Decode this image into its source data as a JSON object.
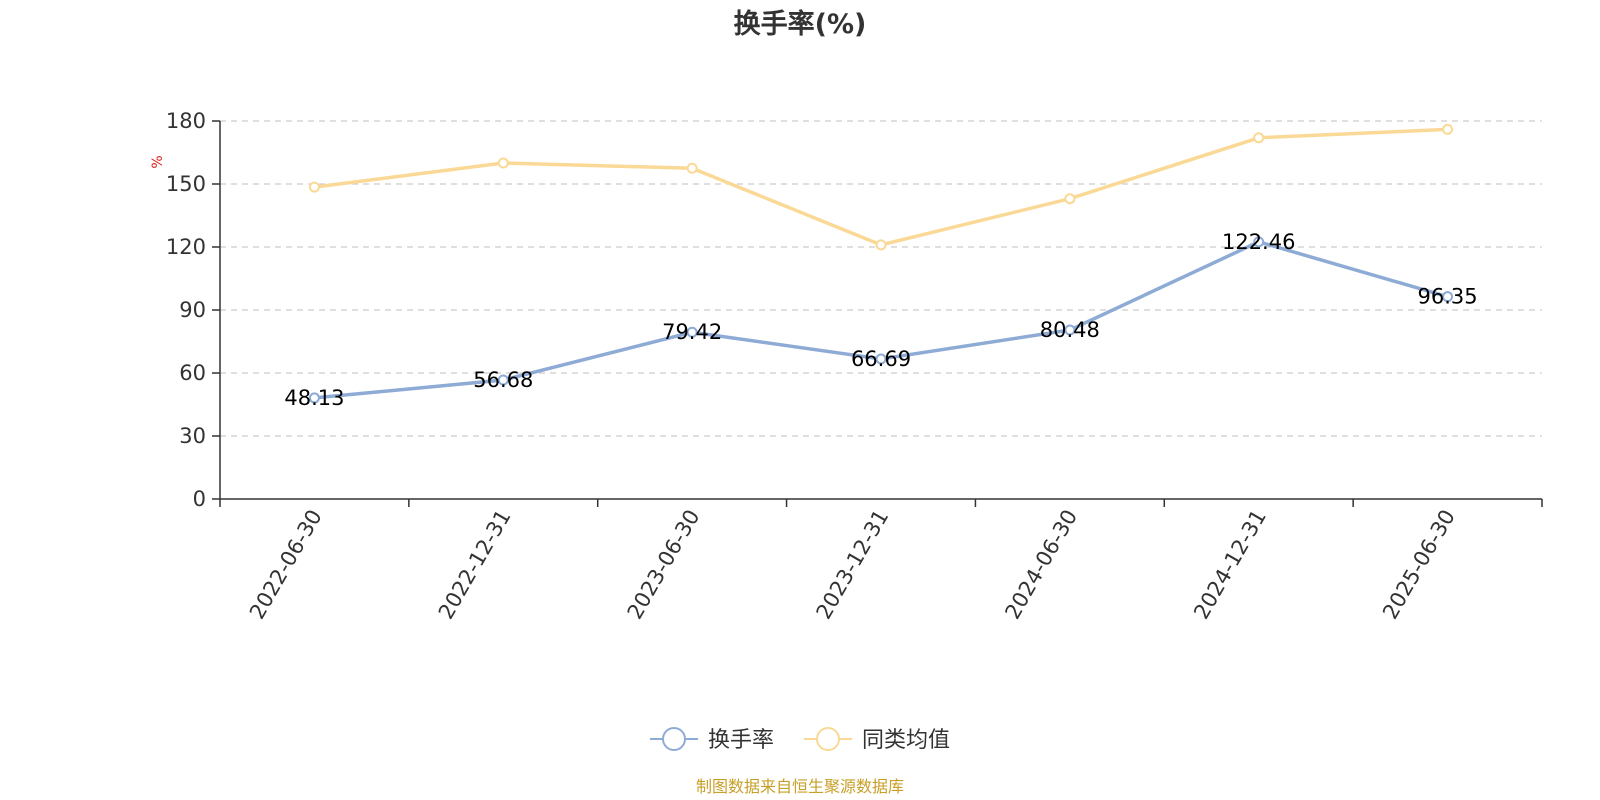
{
  "chart_data": {
    "type": "line",
    "title": "换手率(%)",
    "ylabel": "%",
    "xlabel": "",
    "ylim": [
      0,
      180
    ],
    "yticks": [
      0,
      30,
      60,
      90,
      120,
      150,
      180
    ],
    "grid": true,
    "legend_position": "bottom",
    "categories": [
      "2022-06-30",
      "2022-12-31",
      "2023-06-30",
      "2023-12-31",
      "2024-06-30",
      "2024-12-31",
      "2025-06-30"
    ],
    "series": [
      {
        "name": "换手率",
        "color": "#8eabd6",
        "values": [
          48.13,
          56.68,
          79.42,
          66.69,
          80.48,
          122.46,
          96.35
        ],
        "labels": [
          "48.13",
          "56.68",
          "79.42",
          "66.69",
          "80.48",
          "122.46",
          "96.35"
        ]
      },
      {
        "name": "同类均值",
        "color": "#fad996",
        "values": [
          148.5,
          160.0,
          157.5,
          121.0,
          143.0,
          172.0,
          176.0
        ]
      }
    ]
  },
  "source": "制图数据来自恒生聚源数据库"
}
